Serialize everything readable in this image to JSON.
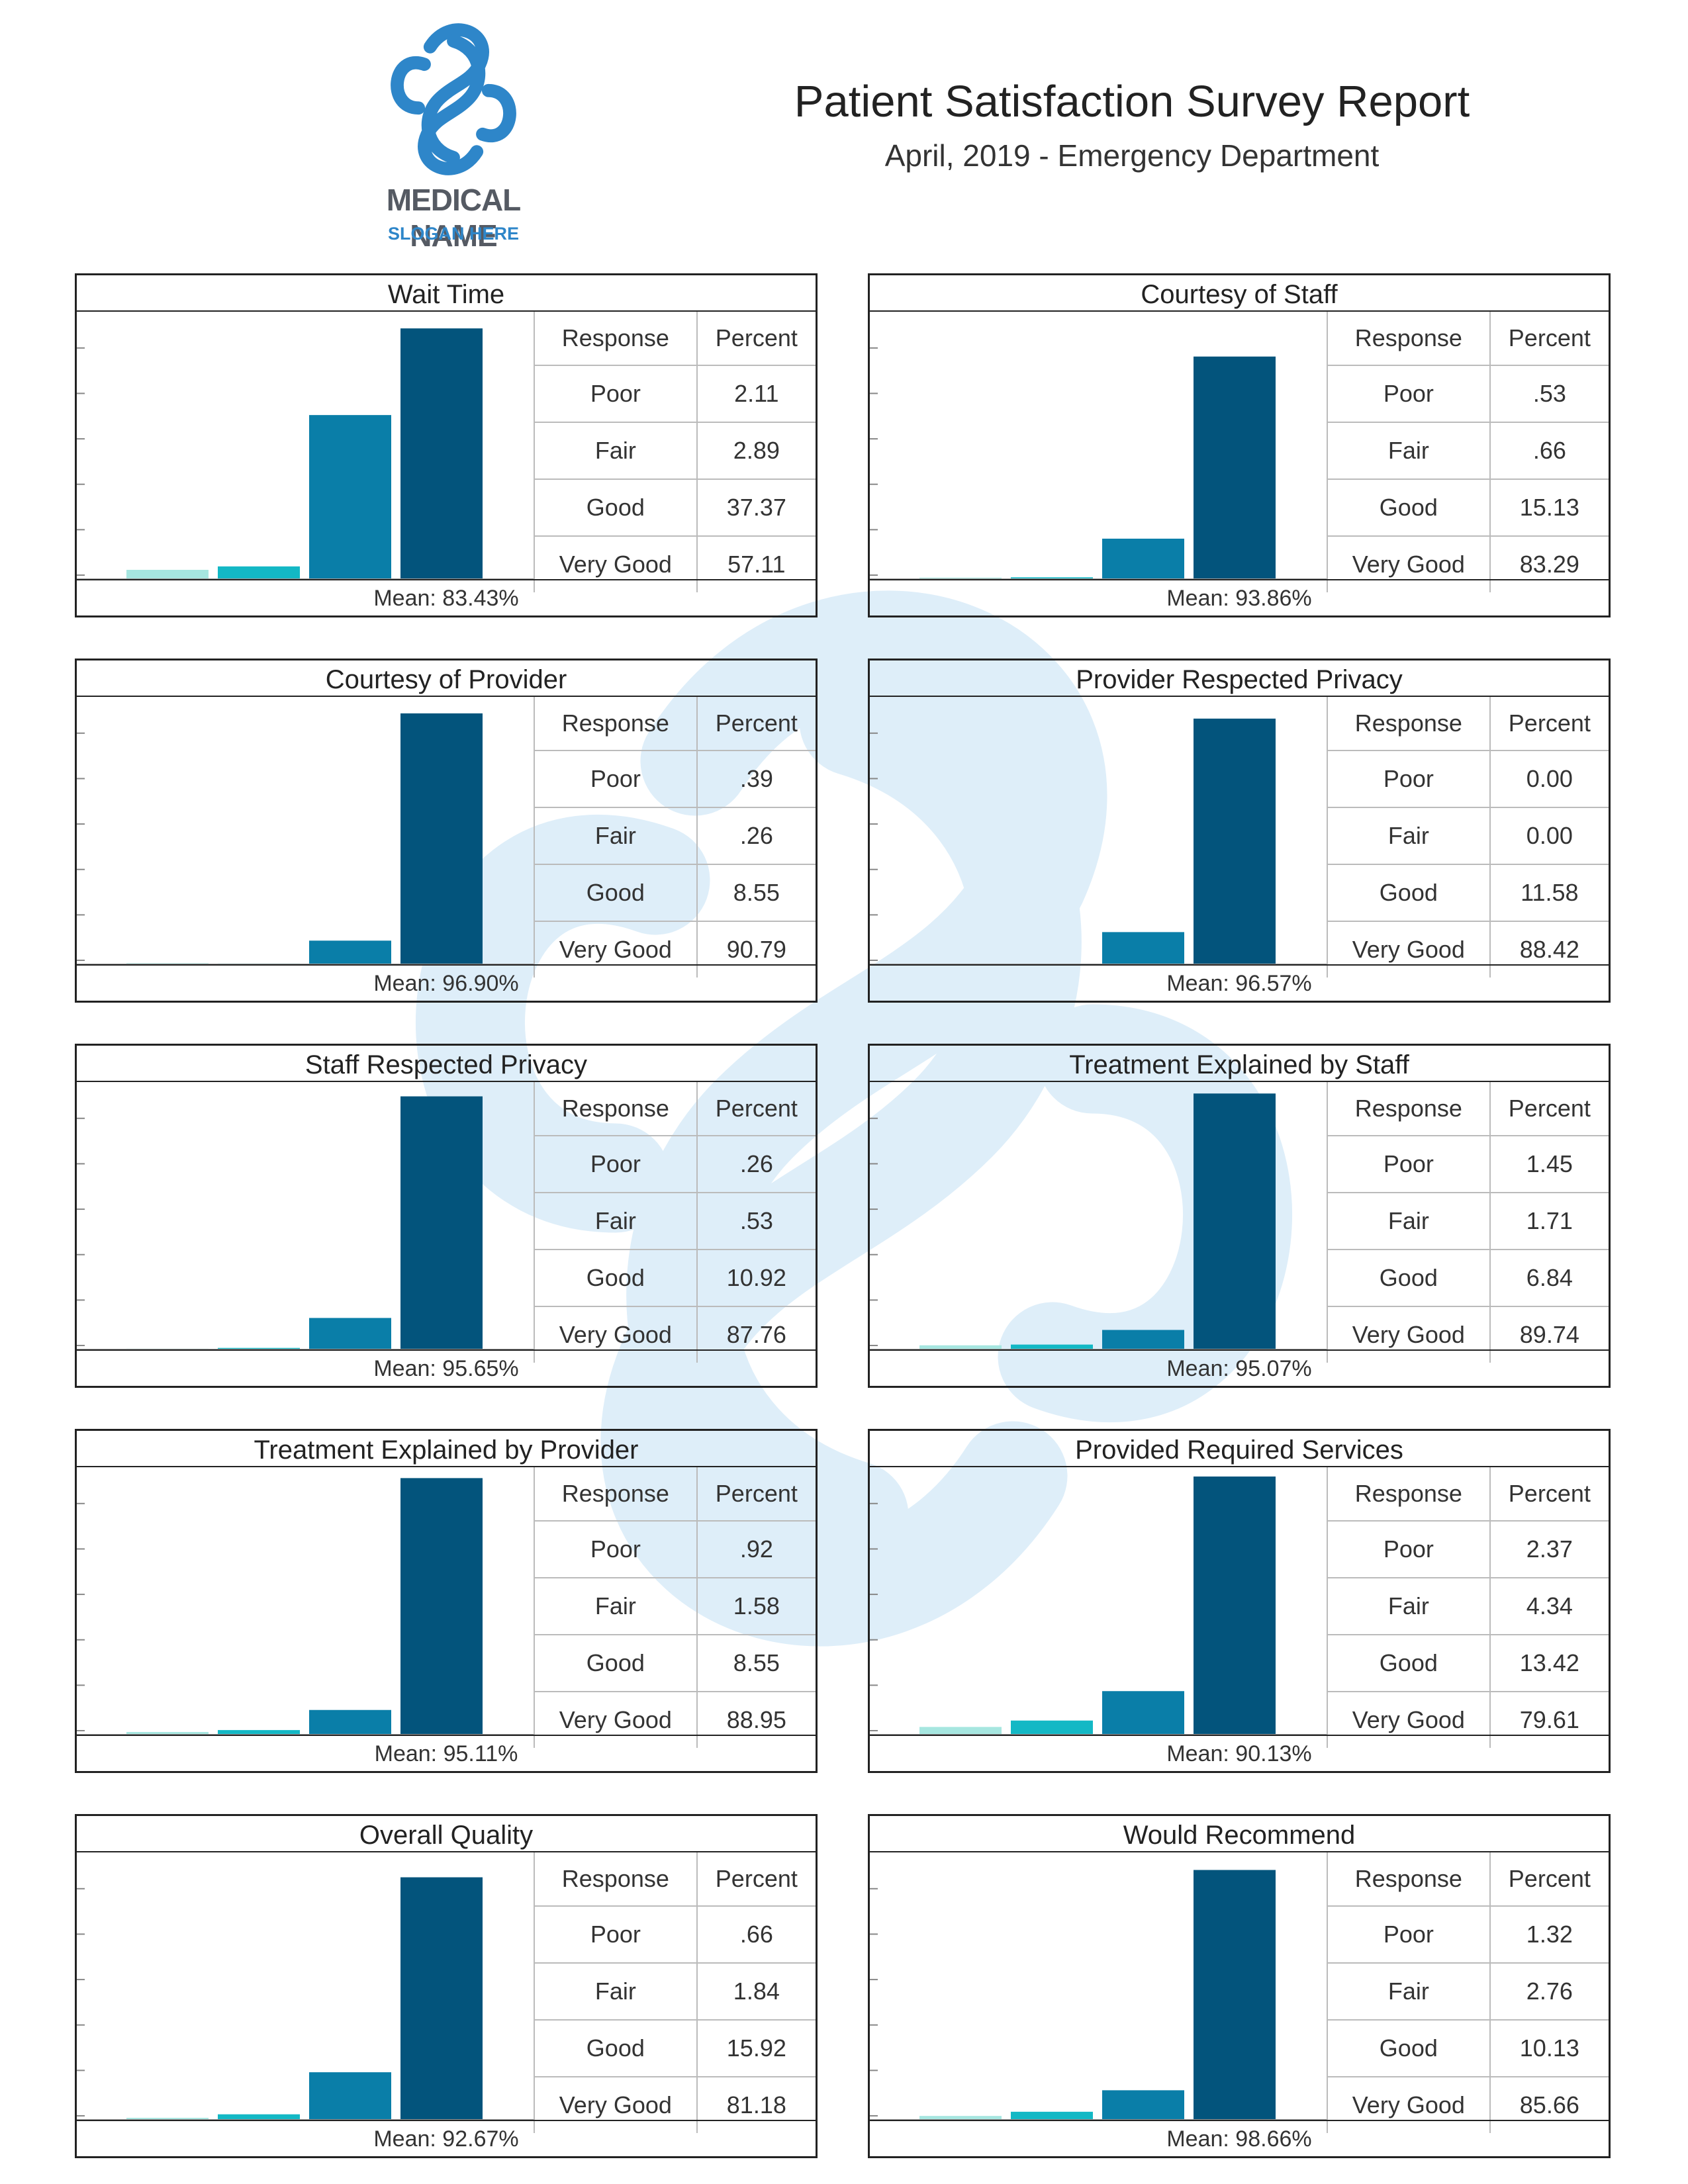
{
  "header": {
    "brand_name": "MEDICAL NAME",
    "brand_slogan": "SLOGAN HERE",
    "title": "Patient Satisfaction Survey Report",
    "subtitle": "April, 2019 - Emergency Department"
  },
  "table_headers": {
    "response": "Response",
    "percent": "Percent"
  },
  "colors": {
    "poor": "#a6e6e0",
    "fair": "#13b8c5",
    "good": "#0a7ea8",
    "very_good": "#03547c",
    "watermark": "#deeef9",
    "brand_blue": "#2e86c9"
  },
  "chart_data": [
    {
      "type": "bar",
      "title": "Wait Time",
      "categories": [
        "Poor",
        "Fair",
        "Good",
        "Very Good"
      ],
      "labels": [
        "2.11",
        "2.89",
        "37.37",
        "57.11"
      ],
      "values": [
        2.11,
        2.89,
        37.37,
        57.11
      ],
      "ylim": [
        0,
        58.8
      ],
      "mean": "Mean: 83.43%"
    },
    {
      "type": "bar",
      "title": "Courtesy of Staff",
      "categories": [
        "Poor",
        "Fair",
        "Good",
        "Very Good"
      ],
      "labels": [
        ".53",
        ".66",
        "15.13",
        "83.29"
      ],
      "values": [
        0.53,
        0.66,
        15.13,
        83.29
      ],
      "ylim": [
        0,
        96.6
      ],
      "mean": "Mean: 93.86%"
    },
    {
      "type": "bar",
      "title": "Courtesy of Provider",
      "categories": [
        "Poor",
        "Fair",
        "Good",
        "Very Good"
      ],
      "labels": [
        ".39",
        ".26",
        "8.55",
        "90.79"
      ],
      "values": [
        0.39,
        0.26,
        8.55,
        90.79
      ],
      "ylim": [
        0,
        93.4
      ],
      "mean": "Mean: 96.90%"
    },
    {
      "type": "bar",
      "title": "Provider Respected Privacy",
      "categories": [
        "Poor",
        "Fair",
        "Good",
        "Very Good"
      ],
      "labels": [
        "0.00",
        "0.00",
        "11.58",
        "88.42"
      ],
      "values": [
        0,
        0,
        11.58,
        88.42
      ],
      "ylim": [
        0,
        92.9
      ],
      "mean": "Mean: 96.57%"
    },
    {
      "type": "bar",
      "title": "Staff Respected Privacy",
      "categories": [
        "Poor",
        "Fair",
        "Good",
        "Very Good"
      ],
      "labels": [
        ".26",
        ".53",
        "10.92",
        "87.76"
      ],
      "values": [
        0.26,
        0.53,
        10.92,
        87.76
      ],
      "ylim": [
        0,
        89.5
      ],
      "mean": "Mean: 95.65%"
    },
    {
      "type": "bar",
      "title": "Treatment Explained by Staff",
      "categories": [
        "Poor",
        "Fair",
        "Good",
        "Very Good"
      ],
      "labels": [
        "1.45",
        "1.71",
        "6.84",
        "89.74"
      ],
      "values": [
        1.45,
        1.71,
        6.84,
        89.74
      ],
      "ylim": [
        0,
        90.5
      ],
      "mean": "Mean: 95.07%"
    },
    {
      "type": "bar",
      "title": "Treatment Explained by Provider",
      "categories": [
        "Poor",
        "Fair",
        "Good",
        "Very Good"
      ],
      "labels": [
        ".92",
        "1.58",
        "8.55",
        "88.95"
      ],
      "values": [
        0.92,
        1.58,
        8.55,
        88.95
      ],
      "ylim": [
        0,
        89.5
      ],
      "mean": "Mean: 95.11%"
    },
    {
      "type": "bar",
      "title": "Provided Required Services",
      "categories": [
        "Poor",
        "Fair",
        "Good",
        "Very Good"
      ],
      "labels": [
        "2.37",
        "4.34",
        "13.42",
        "79.61"
      ],
      "values": [
        2.37,
        4.34,
        13.42,
        79.61
      ],
      "ylim": [
        0,
        79.61
      ],
      "mean": "Mean: 90.13%"
    },
    {
      "type": "bar",
      "title": "Overall Quality",
      "categories": [
        "Poor",
        "Fair",
        "Good",
        "Very Good"
      ],
      "labels": [
        ".66",
        "1.84",
        "15.92",
        "81.18"
      ],
      "values": [
        0.66,
        1.84,
        15.92,
        81.18
      ],
      "ylim": [
        0,
        86.4
      ],
      "mean": "Mean: 92.67%"
    },
    {
      "type": "bar",
      "title": "Would Recommend",
      "categories": [
        "Poor",
        "Fair",
        "Good",
        "Very Good"
      ],
      "labels": [
        "1.32",
        "2.76",
        "10.13",
        "85.66"
      ],
      "values": [
        1.32,
        2.76,
        10.13,
        85.66
      ],
      "ylim": [
        0,
        88.5
      ],
      "mean": "Mean: 98.66%"
    }
  ]
}
